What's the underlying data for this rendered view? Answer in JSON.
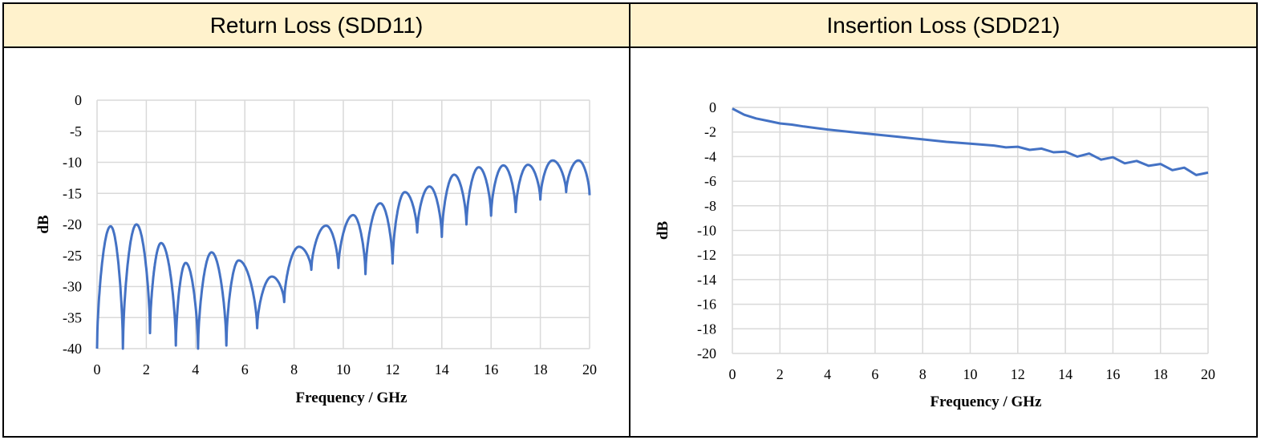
{
  "headers": {
    "left": "Return Loss (SDD11)",
    "right": "Insertion Loss (SDD21)"
  },
  "chart_data": [
    {
      "type": "line",
      "title": "Return Loss (SDD11)",
      "xlabel": "Frequency / GHz",
      "ylabel": "dB",
      "xlim": [
        0,
        20
      ],
      "ylim": [
        -40,
        0
      ],
      "xticks": [
        0,
        2,
        4,
        6,
        8,
        10,
        12,
        14,
        16,
        18,
        20
      ],
      "yticks": [
        0,
        -5,
        -10,
        -15,
        -20,
        -25,
        -30,
        -35,
        -40
      ],
      "grid": true,
      "line_color": "#4472c4",
      "series": [
        {
          "peaks": [
            [
              0.55,
              -20.3
            ],
            [
              1.6,
              -20.0
            ],
            [
              2.6,
              -23.0
            ],
            [
              3.6,
              -26.2
            ],
            [
              4.65,
              -24.5
            ],
            [
              5.75,
              -25.8
            ],
            [
              7.1,
              -28.4
            ],
            [
              8.2,
              -23.6
            ],
            [
              9.3,
              -20.2
            ],
            [
              10.4,
              -18.5
            ],
            [
              11.5,
              -16.6
            ],
            [
              12.5,
              -14.8
            ],
            [
              13.5,
              -13.9
            ],
            [
              14.5,
              -12.0
            ],
            [
              15.5,
              -10.8
            ],
            [
              16.5,
              -10.5
            ],
            [
              17.5,
              -10.4
            ],
            [
              18.5,
              -9.7
            ],
            [
              19.55,
              -9.7
            ]
          ],
          "nulls": [
            [
              0.0,
              -40.0
            ],
            [
              1.05,
              -40.0
            ],
            [
              2.15,
              -37.5
            ],
            [
              3.2,
              -39.5
            ],
            [
              4.1,
              -40.0
            ],
            [
              5.25,
              -39.5
            ],
            [
              6.5,
              -36.7
            ],
            [
              7.6,
              -32.5
            ],
            [
              8.7,
              -27.3
            ],
            [
              9.8,
              -27.0
            ],
            [
              10.9,
              -28.0
            ],
            [
              12.0,
              -26.3
            ],
            [
              13.0,
              -21.3
            ],
            [
              14.0,
              -22.0
            ],
            [
              15.0,
              -20.0
            ],
            [
              16.0,
              -18.6
            ],
            [
              17.0,
              -18.0
            ],
            [
              18.0,
              -16.0
            ],
            [
              19.05,
              -14.8
            ],
            [
              20.0,
              -15.3
            ]
          ]
        }
      ]
    },
    {
      "type": "line",
      "title": "Insertion Loss (SDD21)",
      "xlabel": "Frequency / GHz",
      "ylabel": "dB",
      "xlim": [
        0,
        20
      ],
      "ylim": [
        -20,
        0
      ],
      "xticks": [
        0,
        2,
        4,
        6,
        8,
        10,
        12,
        14,
        16,
        18,
        20
      ],
      "yticks": [
        0,
        -2,
        -4,
        -6,
        -8,
        -10,
        -12,
        -14,
        -16,
        -18,
        -20
      ],
      "grid": true,
      "line_color": "#4472c4",
      "series": [
        {
          "x": [
            0,
            0.5,
            1,
            1.5,
            2,
            2.5,
            3,
            4,
            5,
            6,
            7,
            8,
            9,
            10,
            11,
            11.5,
            12,
            12.5,
            13,
            13.5,
            14,
            14.5,
            15,
            15.5,
            16,
            16.5,
            17,
            17.5,
            18,
            18.5,
            19,
            19.5,
            20
          ],
          "y": [
            -0.1,
            -0.6,
            -0.9,
            -1.1,
            -1.3,
            -1.4,
            -1.55,
            -1.8,
            -2.0,
            -2.2,
            -2.4,
            -2.6,
            -2.8,
            -2.95,
            -3.1,
            -3.25,
            -3.2,
            -3.45,
            -3.35,
            -3.65,
            -3.6,
            -4.0,
            -3.75,
            -4.25,
            -4.05,
            -4.55,
            -4.35,
            -4.75,
            -4.6,
            -5.1,
            -4.9,
            -5.5,
            -5.3
          ]
        }
      ]
    }
  ]
}
